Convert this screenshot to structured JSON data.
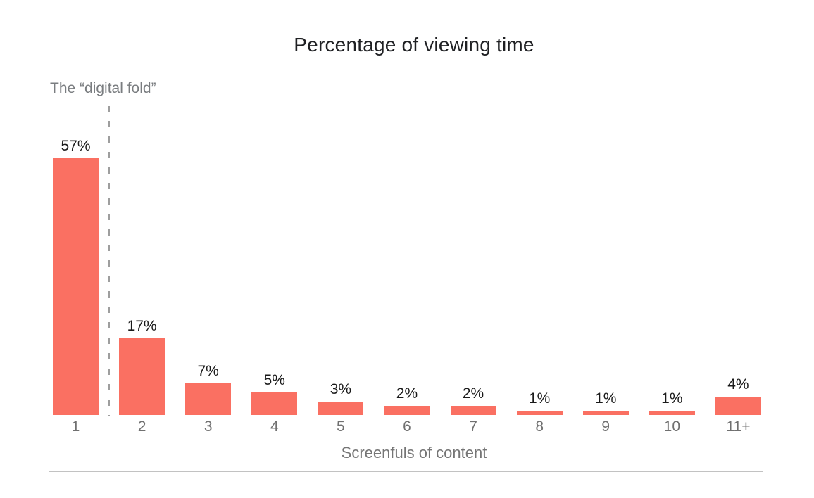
{
  "chart_data": {
    "type": "bar",
    "title": "Percentage of viewing time",
    "xlabel": "Screenfuls of content",
    "ylabel": "",
    "categories": [
      "1",
      "2",
      "3",
      "4",
      "5",
      "6",
      "7",
      "8",
      "9",
      "10",
      "11+"
    ],
    "values": [
      57,
      17,
      7,
      5,
      3,
      2,
      2,
      1,
      1,
      1,
      4
    ],
    "value_labels": [
      "57%",
      "17%",
      "7%",
      "5%",
      "3%",
      "2%",
      "2%",
      "1%",
      "1%",
      "1%",
      "4%"
    ],
    "ylim": [
      0,
      60
    ],
    "grid": false,
    "legend": false,
    "bar_color": "#FA7062",
    "annotation": {
      "text": "The “digital fold”",
      "position": "dashed vertical line between category 1 and category 2",
      "line_style": "dashed",
      "line_color": "#9e9e9e"
    },
    "colors": {
      "title_text": "#1f2023",
      "value_label_text": "#1a1a1a",
      "axis_text": "#757575",
      "divider_line": "#c2c2c2",
      "background": "#ffffff"
    }
  }
}
